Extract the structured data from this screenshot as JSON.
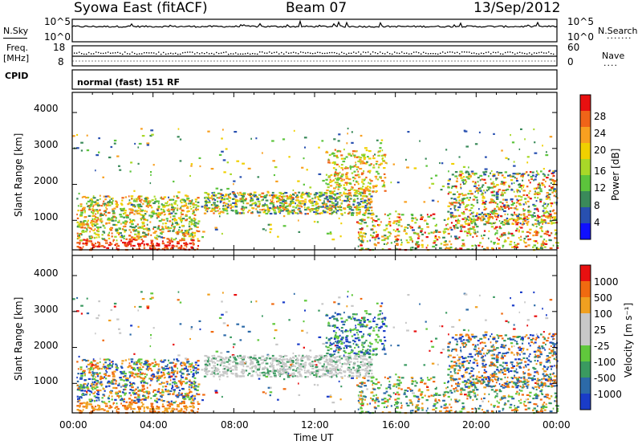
{
  "header": {
    "title": "Syowa East (fitACF)",
    "beam": "Beam 07",
    "date": "13/Sep/2012"
  },
  "top_panels": {
    "nsky_label": "N.Sky",
    "nsky_ticks": [
      "10^5",
      "10^0"
    ],
    "nsearch_label": "N.Search",
    "nsearch_ticks": [
      "10^5",
      "10^0"
    ],
    "nsearch_dots": ".......",
    "freq_label": "Freq.",
    "freq_unit": "[MHz]",
    "freq_ticks": [
      "18",
      "8"
    ],
    "nave_label": "Nave",
    "nave_ticks": [
      "60",
      "0"
    ],
    "nave_dots": "....",
    "cpid_label": "CPID",
    "cpid_value": "normal (fast) 151 RF"
  },
  "chart_data": [
    {
      "type": "heatmap",
      "ylabel": "Slant Range [km]",
      "xlabel": "Time UT",
      "y_ticks": [
        "1000",
        "2000",
        "3000",
        "4000"
      ],
      "ylim": [
        180,
        4560
      ],
      "colorbar_label": "Power [dB]",
      "colorbar_ticks": [
        "4",
        "8",
        "12",
        "16",
        "20",
        "24",
        "28"
      ],
      "colorbar_colors": [
        "#1010ff",
        "#2850b0",
        "#3a8a5a",
        "#5cc43c",
        "#a8d828",
        "#f0d000",
        "#f8a020",
        "#f06418",
        "#e81010"
      ]
    },
    {
      "type": "heatmap",
      "ylabel": "Slant Range [km]",
      "xlabel": "Time UT",
      "y_ticks": [
        "1000",
        "2000",
        "3000",
        "4000"
      ],
      "ylim": [
        180,
        4560
      ],
      "colorbar_label": "Velocity [m s⁻¹]",
      "colorbar_ticks": [
        "1000",
        "500",
        "100",
        "25",
        "-25",
        "-100",
        "-500",
        "-1000"
      ],
      "colorbar_colors": [
        "#1a3cc8",
        "#2c6aa8",
        "#3a9a60",
        "#60c83c",
        "#c8c8c8",
        "#c8c8c8",
        "#f0a020",
        "#f06a10",
        "#e81010"
      ]
    }
  ],
  "x_axis": {
    "ticks": [
      "00:00",
      "04:00",
      "08:00",
      "12:00",
      "16:00",
      "20:00",
      "00:00"
    ],
    "xlabel": "Time UT"
  }
}
